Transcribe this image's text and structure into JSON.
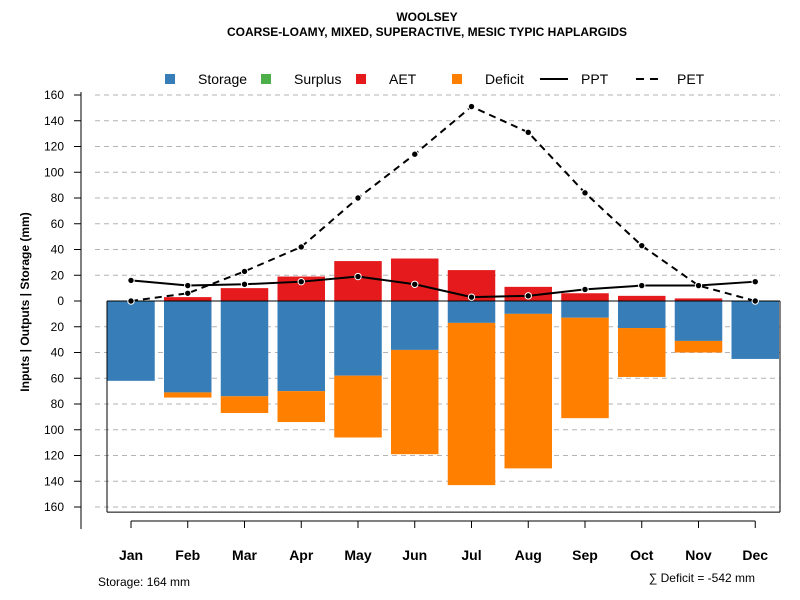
{
  "chart_data": {
    "type": "bar",
    "title": "WOOLSEY",
    "subtitle": "COARSE-LOAMY, MIXED, SUPERACTIVE, MESIC TYPIC HAPLARGIDS",
    "ylabel": "Inputs | Outputs | Storage     (mm)",
    "ylim": [
      -164,
      160
    ],
    "yticks": [
      160,
      140,
      120,
      100,
      80,
      60,
      40,
      20,
      0,
      -20,
      -40,
      -60,
      -80,
      -100,
      -120,
      -140,
      -160
    ],
    "ytick_labels": [
      "160",
      "140",
      "120",
      "100",
      "80",
      "60",
      "40",
      "20",
      "0",
      "20",
      "40",
      "60",
      "80",
      "100",
      "120",
      "140",
      "160"
    ],
    "categories": [
      "Jan",
      "Feb",
      "Mar",
      "Apr",
      "May",
      "Jun",
      "Jul",
      "Aug",
      "Sep",
      "Oct",
      "Nov",
      "Dec"
    ],
    "series": [
      {
        "name": "Storage",
        "color": "#377eb8",
        "values": [
          -62,
          -71,
          -74,
          -70,
          -58,
          -38,
          -17,
          -10,
          -13,
          -21,
          -31,
          -45
        ]
      },
      {
        "name": "Surplus",
        "color": "#4daf4a",
        "values": [
          0,
          0,
          0,
          0,
          0,
          0,
          0,
          0,
          0,
          0,
          0,
          0
        ]
      },
      {
        "name": "AET",
        "color": "#e41a1c",
        "values": [
          0,
          3,
          10,
          19,
          31,
          33,
          24,
          11,
          6,
          4,
          2,
          0
        ]
      },
      {
        "name": "Deficit",
        "color": "#ff7f00",
        "values": [
          0,
          -4,
          -13,
          -24,
          -48,
          -81,
          -126,
          -120,
          -78,
          -38,
          -9,
          0
        ]
      },
      {
        "name": "PPT",
        "color": "#000000",
        "style": "solid",
        "values": [
          16,
          12,
          13,
          15,
          19,
          13,
          3,
          4,
          9,
          12,
          12,
          15
        ]
      },
      {
        "name": "PET",
        "color": "#000000",
        "style": "dashed",
        "values": [
          0,
          6,
          23,
          42,
          80,
          114,
          151,
          131,
          84,
          43,
          12,
          0
        ]
      }
    ],
    "legend": [
      "Storage",
      "Surplus",
      "AET",
      "Deficit",
      "PPT",
      "PET"
    ],
    "legend_position": "top",
    "grid": true,
    "footer_left": "Storage: 164 mm",
    "footer_right": "∑ Deficit = -542 mm"
  }
}
